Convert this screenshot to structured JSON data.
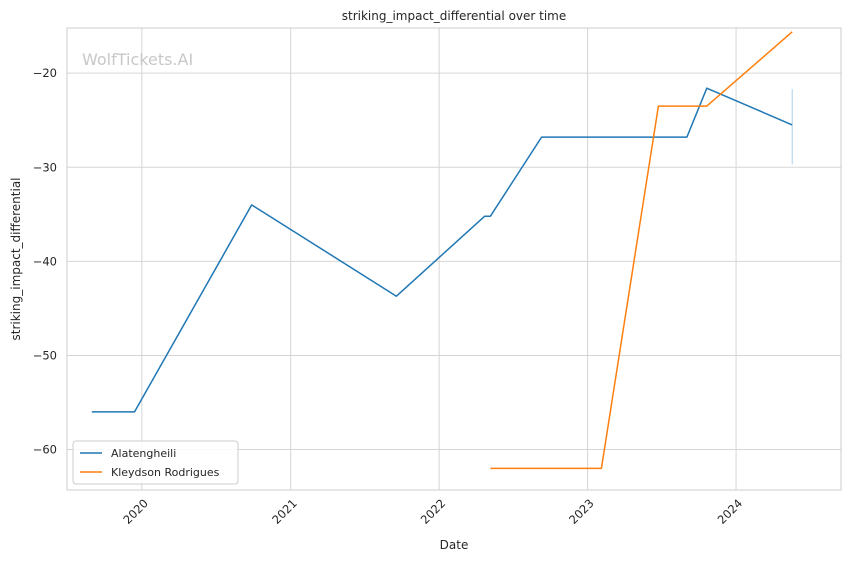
{
  "chart_data": {
    "type": "line",
    "title": "striking_impact_differential over time",
    "xlabel": "Date",
    "ylabel": "striking_impact_differential",
    "watermark": "WolfTickets.AI",
    "x_ticks": [
      "2020",
      "2021",
      "2022",
      "2023",
      "2024"
    ],
    "y_ticks": [
      -20,
      -30,
      -40,
      -50,
      -60
    ],
    "xlim": [
      "2019-07-01",
      "2024-09-15"
    ],
    "ylim": [
      -64.3,
      -15.2
    ],
    "grid": true,
    "legend_position": "lower-left",
    "series": [
      {
        "name": "Alatengheili",
        "color": "#1f77b4",
        "x": [
          "2019-08-31",
          "2019-12-14",
          "2020-09-27",
          "2021-09-18",
          "2022-04-23",
          "2022-05-07",
          "2022-09-10",
          "2023-09-02",
          "2023-10-21",
          "2024-05-18"
        ],
        "y": [
          -56,
          -56,
          -34,
          -43.7,
          -35.2,
          -35.2,
          -26.8,
          -26.8,
          -21.6,
          -25.5
        ]
      },
      {
        "name": "Kleydson Rodrigues",
        "color": "#ff7f0e",
        "x": [
          "2022-05-07",
          "2023-02-04",
          "2023-06-24",
          "2023-10-21",
          "2024-05-18"
        ],
        "y": [
          -62,
          -62,
          -23.5,
          -23.5,
          -15.6
        ]
      }
    ],
    "error_bar": {
      "x": "2024-05-18",
      "y_low": -29.7,
      "y_high": -21.7,
      "color": "#aad0e8"
    }
  }
}
